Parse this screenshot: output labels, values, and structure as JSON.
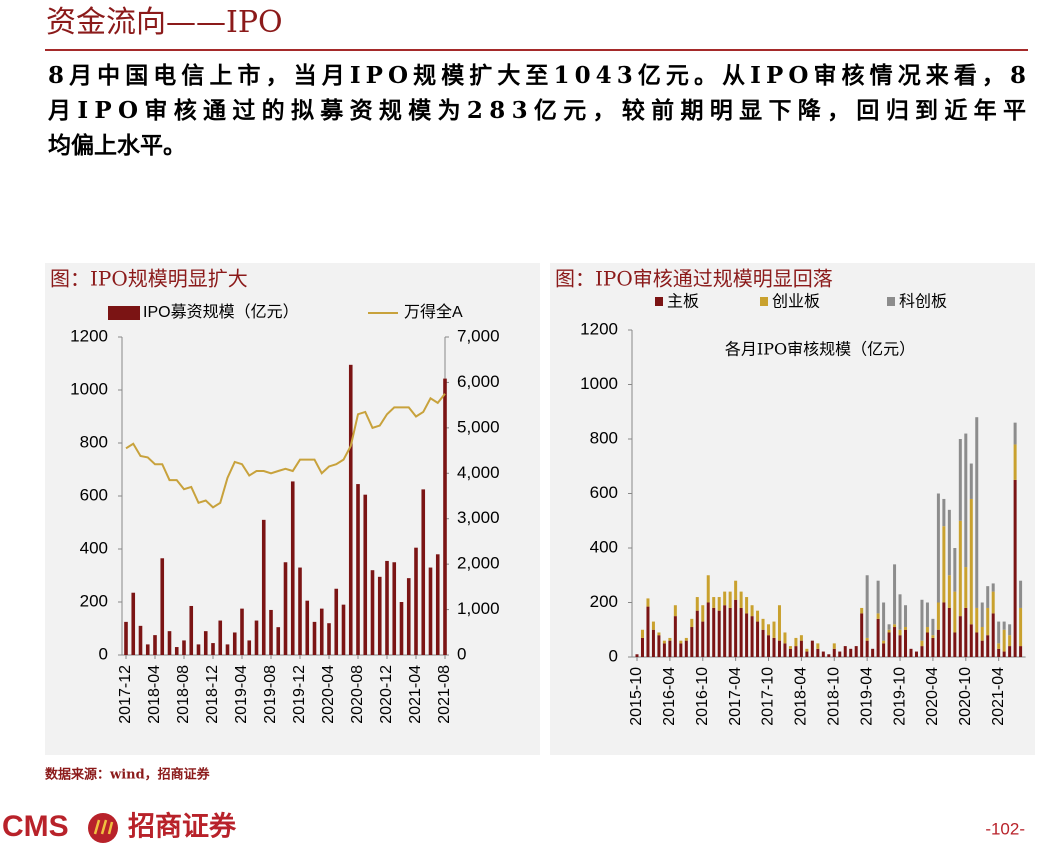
{
  "header": {
    "title": "资金流向——IPO"
  },
  "body": {
    "lines": [
      "8月中国电信上市，当月IPO规模扩大至1043亿元。从IPO审核情况来看，8",
      "月IPO审核通过的拟募资规模为283亿元，较前期明显下降，回归到近年平",
      "均偏上水平。"
    ]
  },
  "chart_data": [
    {
      "type": "combo",
      "title": "图：IPO规模明显扩大",
      "categories": [
        "2017-12",
        null,
        null,
        null,
        "2018-04",
        null,
        null,
        null,
        "2018-08",
        null,
        null,
        null,
        "2018-12",
        null,
        null,
        null,
        "2019-04",
        null,
        null,
        null,
        "2019-08",
        null,
        null,
        null,
        "2019-12",
        null,
        null,
        null,
        "2020-04",
        null,
        null,
        null,
        "2020-08",
        null,
        null,
        null,
        "2020-12",
        null,
        null,
        null,
        "2021-04",
        null,
        null,
        null,
        "2021-08"
      ],
      "series": [
        {
          "name": "IPO募资规模（亿元）",
          "type": "bar",
          "color": "#7b1414",
          "values": [
            125,
            235,
            110,
            40,
            75,
            365,
            90,
            30,
            55,
            185,
            40,
            90,
            45,
            130,
            40,
            85,
            175,
            55,
            130,
            510,
            170,
            105,
            350,
            655,
            330,
            205,
            125,
            175,
            120,
            250,
            190,
            1095,
            645,
            605,
            320,
            295,
            355,
            350,
            200,
            290,
            405,
            625,
            330,
            380,
            1043
          ]
        },
        {
          "name": "万得全A",
          "type": "line",
          "axis": "y2",
          "color": "#c8a23c",
          "values": [
            4550,
            4650,
            4380,
            4350,
            4200,
            4200,
            3850,
            3850,
            3650,
            3700,
            3350,
            3400,
            3250,
            3350,
            3900,
            4250,
            4200,
            3950,
            4050,
            4050,
            4000,
            4050,
            4100,
            4050,
            4300,
            4300,
            4300,
            4000,
            4150,
            4200,
            4300,
            4600,
            5300,
            5350,
            5000,
            5050,
            5300,
            5450,
            5450,
            5450,
            5250,
            5350,
            5650,
            5550,
            5750
          ]
        }
      ],
      "ylim": [
        0,
        1200
      ],
      "yticks": [
        0,
        200,
        400,
        600,
        800,
        1000,
        1200
      ],
      "y2lim": [
        0,
        7000
      ],
      "y2ticks": [
        0,
        {
          "value": 1000,
          "label": "1,000"
        },
        {
          "value": 2000,
          "label": "2,000"
        },
        {
          "value": 3000,
          "label": "3,000"
        },
        {
          "value": 4000,
          "label": "4,000"
        },
        {
          "value": 5000,
          "label": "5,000"
        },
        {
          "value": 6000,
          "label": "6,000"
        },
        {
          "value": 7000,
          "label": "7,000"
        }
      ],
      "legend": "top"
    },
    {
      "type": "bar",
      "stacked": true,
      "title": "图：IPO审核通过规模明显回落",
      "subtitle": "各月IPO审核规模（亿元）",
      "categories": [
        "2015-10",
        null,
        null,
        null,
        null,
        null,
        "2016-04",
        null,
        null,
        null,
        null,
        null,
        "2016-10",
        null,
        null,
        null,
        null,
        null,
        "2017-04",
        null,
        null,
        null,
        null,
        null,
        "2017-10",
        null,
        null,
        null,
        null,
        null,
        "2018-04",
        null,
        null,
        null,
        null,
        null,
        "2018-10",
        null,
        null,
        null,
        null,
        null,
        "2019-04",
        null,
        null,
        null,
        null,
        null,
        "2019-10",
        null,
        null,
        null,
        null,
        null,
        "2020-04",
        null,
        null,
        null,
        null,
        null,
        "2020-10",
        null,
        null,
        null,
        null,
        null,
        "2021-04",
        null,
        null,
        null,
        null
      ],
      "series": [
        {
          "name": "主板",
          "color": "#7b1414",
          "values": [
            10,
            70,
            185,
            100,
            80,
            50,
            60,
            150,
            50,
            60,
            110,
            170,
            130,
            200,
            180,
            170,
            190,
            180,
            210,
            180,
            160,
            150,
            130,
            100,
            80,
            70,
            60,
            50,
            30,
            40,
            60,
            20,
            60,
            30,
            20,
            10,
            30,
            20,
            40,
            30,
            40,
            160,
            60,
            30,
            140,
            50,
            90,
            110,
            80,
            100,
            30,
            20,
            40,
            90,
            70,
            100,
            200,
            180,
            90,
            150,
            180,
            120,
            90,
            60,
            80,
            160,
            30,
            20,
            40,
            650,
            40
          ]
        },
        {
          "name": "创业板",
          "color": "#c9a12e",
          "values": [
            0,
            30,
            30,
            30,
            10,
            10,
            10,
            40,
            10,
            10,
            30,
            50,
            60,
            100,
            40,
            50,
            50,
            60,
            70,
            60,
            60,
            40,
            40,
            40,
            40,
            60,
            130,
            40,
            10,
            30,
            20,
            10,
            0,
            20,
            0,
            0,
            20,
            0,
            0,
            0,
            0,
            20,
            10,
            0,
            20,
            10,
            10,
            10,
            20,
            10,
            0,
            0,
            20,
            20,
            10,
            100,
            280,
            120,
            150,
            350,
            150,
            460,
            90,
            50,
            100,
            80,
            20,
            80,
            40,
            130,
            140
          ]
        },
        {
          "name": "科创板",
          "color": "#8c8c8c",
          "values": [
            0,
            0,
            0,
            0,
            0,
            0,
            0,
            0,
            0,
            0,
            0,
            0,
            0,
            0,
            0,
            0,
            0,
            0,
            0,
            0,
            0,
            0,
            0,
            0,
            0,
            0,
            0,
            0,
            0,
            0,
            0,
            0,
            0,
            0,
            0,
            0,
            0,
            0,
            0,
            0,
            0,
            0,
            230,
            0,
            120,
            140,
            20,
            220,
            130,
            80,
            0,
            0,
            150,
            90,
            60,
            400,
            100,
            240,
            160,
            300,
            490,
            130,
            700,
            90,
            80,
            30,
            80,
            30,
            40,
            80,
            100
          ]
        }
      ],
      "ylim": [
        0,
        1200
      ],
      "yticks": [
        0,
        200,
        400,
        600,
        800,
        1000,
        1200
      ],
      "legend": "top"
    }
  ],
  "footer": {
    "source": "数据来源：wind，招商证券",
    "logo": "CMS",
    "company": "招商证券",
    "page": "-102-"
  }
}
